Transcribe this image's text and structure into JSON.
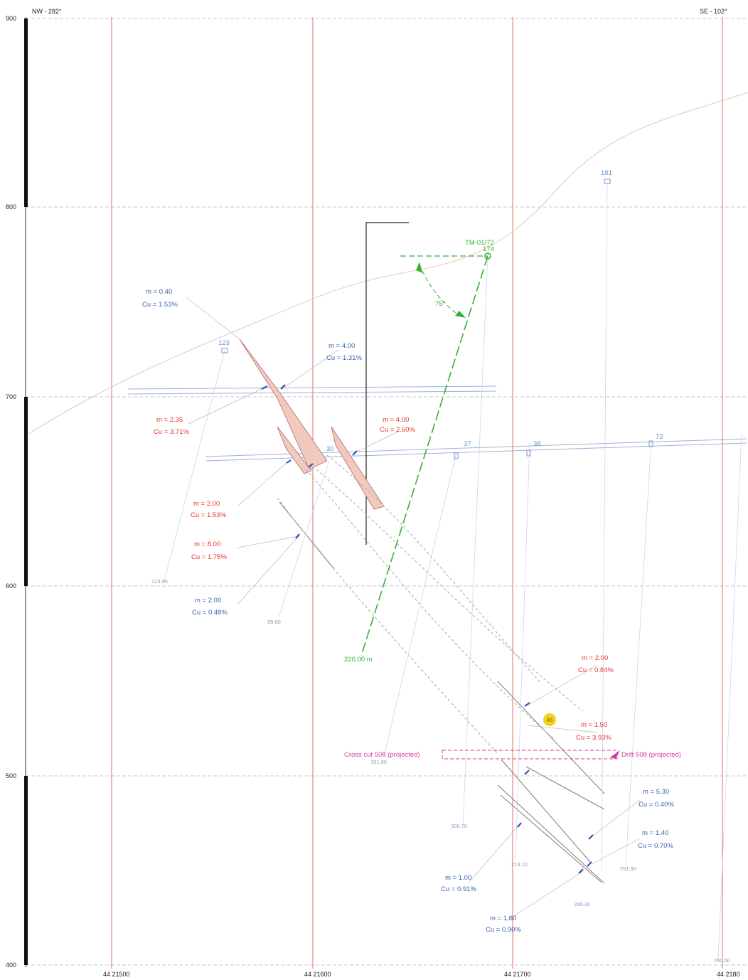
{
  "header": {
    "left_title": "NW - 282°",
    "right_title": "SE - 102°"
  },
  "y_axis": {
    "ticks": [
      "900",
      "800",
      "700",
      "600",
      "500",
      "400"
    ]
  },
  "x_axis": {
    "ticks": [
      "44 21500",
      "44 21600",
      "44 21700",
      "44 2180"
    ]
  },
  "collar": {
    "name": "TM-01/72",
    "elev": "174",
    "angle": "75°",
    "depth_label": "220.00 m"
  },
  "drillholes": {
    "h181": "181",
    "h123": "123",
    "h30": "30",
    "h37": "37",
    "h38": "38",
    "h72": "72"
  },
  "depths": {
    "d1": "123.95",
    "d2": "99.60",
    "d3": "151.00",
    "d4": "300.70",
    "d5": "213.10",
    "d6": "251.90",
    "d7": "289.30",
    "d8": "290.50"
  },
  "workings": {
    "crosscut": "Cross cut 508 (projected)",
    "drift": "Drift 508 (projected)"
  },
  "badge": "46",
  "intercepts": [
    {
      "m": "m = 0.40",
      "cu": "Cu = 1.53%"
    },
    {
      "m": "m = 4.00",
      "cu": "Cu = 1.31%"
    },
    {
      "m": "m = 2.35",
      "cu": "Cu = 3.71%"
    },
    {
      "m": "m = 4.00",
      "cu": "Cu = 2.60%"
    },
    {
      "m": "m = 2.00",
      "cu": "Cu = 1.53%"
    },
    {
      "m": "m = 8.00",
      "cu": "Cu = 1.75%"
    },
    {
      "m": "m = 2.00",
      "cu": "Cu = 0.48%"
    },
    {
      "m": "m = 2.00",
      "cu": "Cu = 0.84%"
    },
    {
      "m": "m = 1.50",
      "cu": "Cu = 3.93%"
    },
    {
      "m": "m = 5.30",
      "cu": "Cu = 0.40%"
    },
    {
      "m": "m = 1.40",
      "cu": "Cu = 0.70%"
    },
    {
      "m": "m = 1.00",
      "cu": "Cu = 0.91%"
    },
    {
      "m": "m = 1.60",
      "cu": "Cu = 0.90%"
    }
  ],
  "colors": {
    "grid_red": "#e35b52",
    "blue": "#3a63b5",
    "red": "#e0382e",
    "green": "#35b035",
    "magenta": "#d63aa0",
    "ore_fill": "#f2c9bf"
  }
}
